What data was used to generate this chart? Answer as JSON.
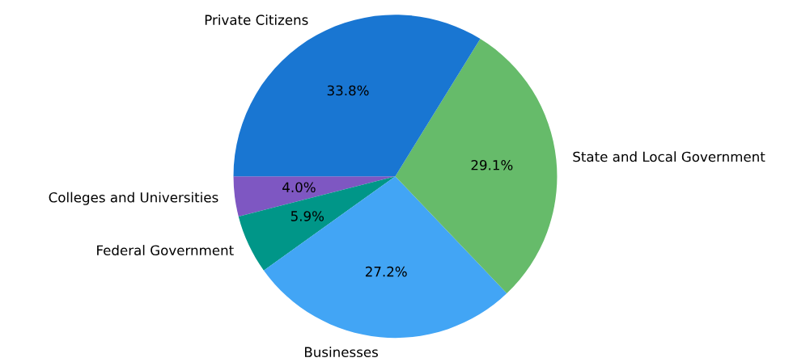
{
  "chart_data": {
    "type": "pie",
    "categories": [
      "Colleges and Universities",
      "Federal Government",
      "Businesses",
      "State and Local Government",
      "Private Citizens"
    ],
    "values": [
      4.0,
      5.9,
      27.2,
      29.1,
      33.8
    ],
    "value_labels": [
      "4.0%",
      "5.9%",
      "27.2%",
      "29.1%",
      "33.8%"
    ],
    "colors": [
      "#7e57c2",
      "#009688",
      "#42a5f5",
      "#66bb6a",
      "#1976d2"
    ],
    "legend": false
  }
}
